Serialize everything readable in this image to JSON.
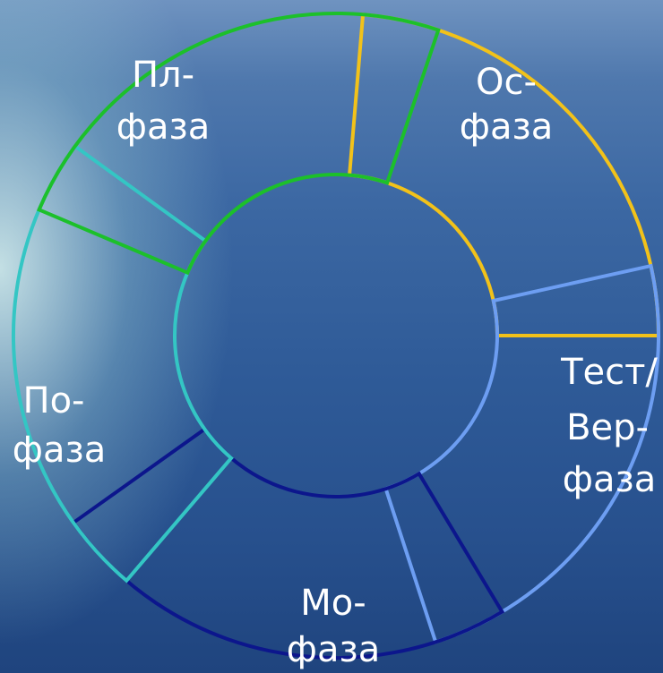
{
  "nodes": [
    {
      "label": [
        "Пл-",
        "фаза"
      ]
    },
    {
      "label": [
        "Ос-",
        "фаза"
      ]
    },
    {
      "label": [
        "Тест/",
        "Вер-",
        "фаза"
      ]
    },
    {
      "label": [
        "Мо-",
        "фаза"
      ]
    },
    {
      "label": [
        "По-",
        "фаза"
      ]
    }
  ]
}
